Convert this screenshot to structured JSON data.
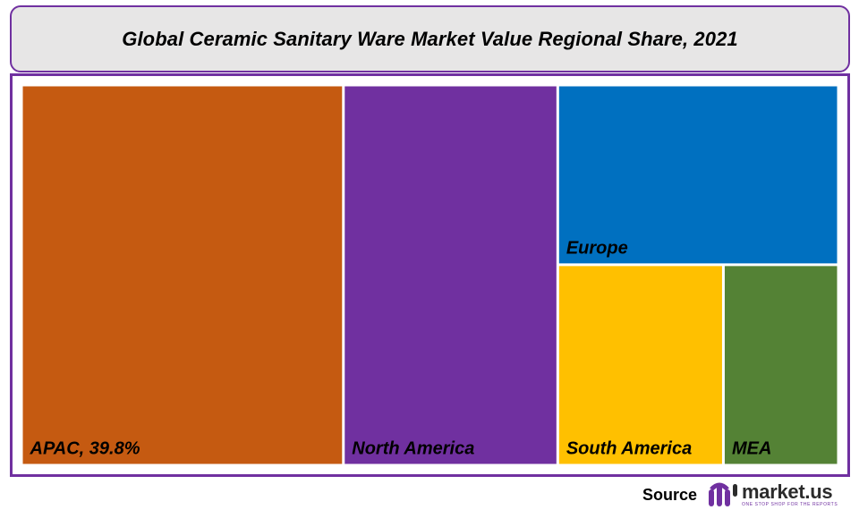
{
  "chart_data": {
    "type": "treemap",
    "title": "Global Ceramic Sanitary Ware Market Value Regional Share, 2021",
    "items": [
      {
        "name": "APAC",
        "label": "APAC, 39.8%",
        "value": 39.8,
        "color": "#c55a11"
      },
      {
        "name": "North America",
        "label": "North America",
        "value": 26.5,
        "color": "#7030a0"
      },
      {
        "name": "Europe",
        "label": "Europe",
        "value": 16.4,
        "color": "#0070c0"
      },
      {
        "name": "South America",
        "label": "South America",
        "value": 10.8,
        "color": "#ffc000"
      },
      {
        "name": "MEA",
        "label": "MEA",
        "value": 7.5,
        "color": "#548235"
      }
    ]
  },
  "source": {
    "label": "Source",
    "brand": "market.us",
    "tagline": "ONE STOP SHOP FOR THE REPORTS",
    "brand_color": "#7030a0"
  }
}
